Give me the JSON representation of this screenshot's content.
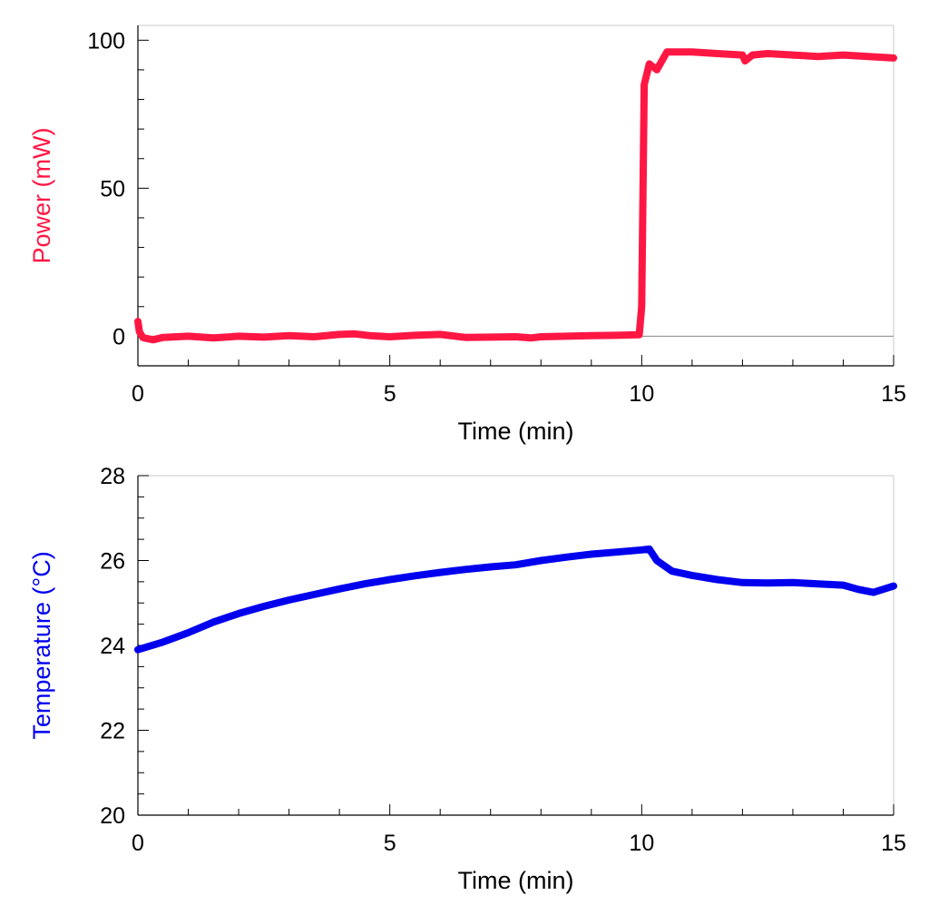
{
  "colors": {
    "power": "#ff1744",
    "temperature": "#0000ee",
    "axis": "#000000",
    "frame": "#c8c8c8",
    "zero_line": "#888888"
  },
  "chart_data": [
    {
      "type": "line",
      "title": "",
      "xlabel": "Time (min)",
      "ylabel": "Power (mW)",
      "xlim": [
        0,
        15
      ],
      "ylim": [
        -10,
        105
      ],
      "xticks": [
        "0",
        "5",
        "10",
        "15"
      ],
      "yticks": [
        "0",
        "50",
        "100"
      ],
      "x_minor_step": 1,
      "y_minor_step": 10,
      "zero_line": true,
      "grid": false,
      "series": [
        {
          "color": "#ff1744",
          "x": [
            0,
            0.03,
            0.1,
            0.3,
            0.5,
            1,
            1.5,
            2,
            2.5,
            3,
            3.5,
            4,
            4.3,
            4.6,
            5,
            5.5,
            6,
            6.5,
            7,
            7.5,
            7.8,
            8,
            8.5,
            9,
            9.5,
            9.95,
            10.0,
            10.05,
            10.15,
            10.3,
            10.5,
            11,
            11.5,
            12,
            12.05,
            12.2,
            12.5,
            13,
            13.5,
            14,
            14.5,
            15
          ],
          "y": [
            5,
            1.5,
            -0.5,
            -1.2,
            -0.4,
            0,
            -0.6,
            0,
            -0.3,
            0.2,
            -0.2,
            0.6,
            0.8,
            0.2,
            -0.2,
            0.3,
            0.6,
            -0.4,
            -0.3,
            -0.2,
            -0.6,
            -0.2,
            0,
            0.2,
            0.3,
            0.5,
            10,
            85,
            92,
            90,
            96,
            96,
            95.5,
            95,
            93,
            95,
            95.5,
            95,
            94.5,
            95,
            94.5,
            94
          ]
        }
      ]
    },
    {
      "type": "line",
      "title": "",
      "xlabel": "Time (min)",
      "ylabel": "Temperature (°C)",
      "xlim": [
        0,
        15
      ],
      "ylim": [
        20,
        28
      ],
      "xticks": [
        "0",
        "5",
        "10",
        "15"
      ],
      "yticks": [
        "20",
        "22",
        "24",
        "26",
        "28"
      ],
      "x_minor_step": 1,
      "y_minor_step": 0.5,
      "zero_line": false,
      "grid": false,
      "series": [
        {
          "color": "#0000ee",
          "x": [
            0,
            0.5,
            1,
            1.5,
            2,
            2.5,
            3,
            3.5,
            4,
            4.5,
            5,
            5.5,
            6,
            6.5,
            7,
            7.5,
            8,
            8.5,
            9,
            9.5,
            10,
            10.15,
            10.3,
            10.6,
            11,
            11.5,
            12,
            12.5,
            13,
            13.5,
            14,
            14.3,
            14.6,
            15
          ],
          "y": [
            23.9,
            24.08,
            24.3,
            24.55,
            24.75,
            24.92,
            25.07,
            25.2,
            25.33,
            25.45,
            25.55,
            25.64,
            25.72,
            25.79,
            25.85,
            25.9,
            26.0,
            26.08,
            26.15,
            26.2,
            26.25,
            26.27,
            26.0,
            25.75,
            25.65,
            25.55,
            25.48,
            25.47,
            25.48,
            25.45,
            25.42,
            25.32,
            25.25,
            25.4
          ]
        }
      ]
    }
  ]
}
